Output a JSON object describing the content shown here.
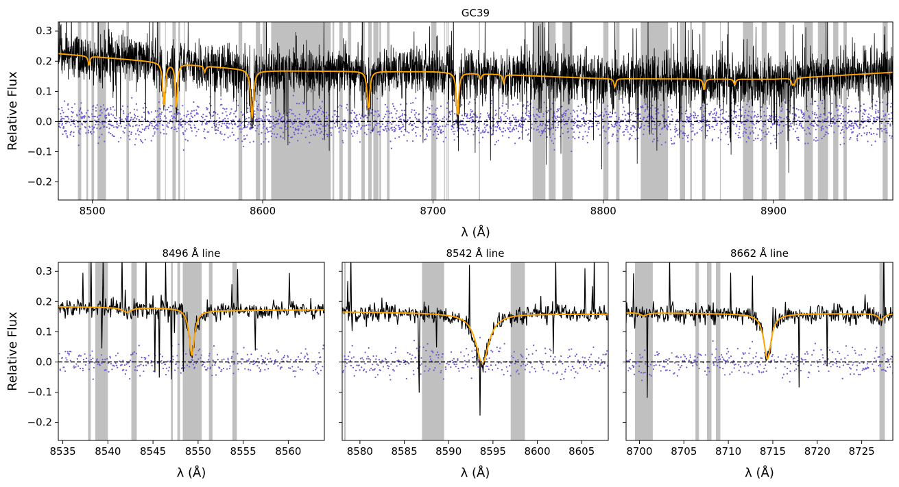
{
  "colors": {
    "spectrum": "#000000",
    "model": "#ffa500",
    "residuals": "#6a5acd",
    "mask": "#bdbdbd",
    "zero_line": "#000000"
  },
  "chart_data": [
    {
      "type": "line",
      "id": "main",
      "title": "GC39",
      "xlabel": "λ (Å)",
      "ylabel": "Relative Flux",
      "xlim": [
        8480,
        8970
      ],
      "ylim": [
        -0.26,
        0.33
      ],
      "xticks": [
        8500,
        8600,
        8700,
        8800,
        8900
      ],
      "yticks": [
        -0.2,
        -0.1,
        0.0,
        0.1,
        0.2,
        0.3
      ],
      "xticklabels": [
        "8500",
        "8600",
        "8700",
        "8800",
        "8900"
      ],
      "yticklabels": [
        "−0.2",
        "−0.1",
        "0.0",
        "0.1",
        "0.2",
        "0.3"
      ],
      "series": [
        {
          "name": "observed spectrum",
          "style": "black line",
          "level": 0.17,
          "noise": 0.09
        },
        {
          "name": "model fit",
          "style": "orange line",
          "continuum": [
            [
              8480,
              0.225
            ],
            [
              8600,
              0.168
            ],
            [
              8700,
              0.165
            ],
            [
              8800,
              0.142
            ],
            [
              8900,
              0.14
            ],
            [
              8970,
              0.163
            ]
          ]
        },
        {
          "name": "residuals",
          "style": "purple dots",
          "level": 0.0,
          "noise": 0.065
        },
        {
          "name": "zero",
          "style": "dashed black",
          "value": 0.0
        }
      ],
      "absorption_lines": [
        {
          "center": 8498.0,
          "depth": 0.03,
          "width": 0.6
        },
        {
          "center": 8542.1,
          "depth": 0.14,
          "width": 0.9
        },
        {
          "center": 8549.3,
          "depth": 0.15,
          "width": 0.7
        },
        {
          "center": 8566.0,
          "depth": 0.02,
          "width": 0.6
        },
        {
          "center": 8593.8,
          "depth": 0.16,
          "width": 1.0
        },
        {
          "center": 8662.1,
          "depth": 0.13,
          "width": 0.9
        },
        {
          "center": 8714.4,
          "depth": 0.15,
          "width": 0.8
        },
        {
          "center": 8728.0,
          "depth": 0.02,
          "width": 0.6
        },
        {
          "center": 8741.5,
          "depth": 0.03,
          "width": 0.6
        },
        {
          "center": 8806.8,
          "depth": 0.03,
          "width": 0.6
        },
        {
          "center": 8859.2,
          "depth": 0.04,
          "width": 0.6
        },
        {
          "center": 8877.2,
          "depth": 0.02,
          "width": 0.6
        },
        {
          "center": 8911.0,
          "depth": 0.02,
          "width": 0.6
        },
        {
          "center": 8912.2,
          "depth": 0.02,
          "width": 0.6
        }
      ],
      "masked_regions": [
        [
          8491.5,
          8493.5
        ],
        [
          8496.5,
          8497.5
        ],
        [
          8499.5,
          8501
        ],
        [
          8503,
          8508
        ],
        [
          8520,
          8521.5
        ],
        [
          8537.8,
          8540
        ],
        [
          8542.7,
          8543
        ],
        [
          8547,
          8549
        ],
        [
          8550.5,
          8551.5
        ],
        [
          8553.8,
          8554.3
        ],
        [
          8585.8,
          8588
        ],
        [
          8596,
          8598.5
        ],
        [
          8600,
          8602
        ],
        [
          8605,
          8640
        ],
        [
          8641,
          8642
        ],
        [
          8645,
          8647
        ],
        [
          8650,
          8652
        ],
        [
          8658,
          8660
        ],
        [
          8662,
          8664
        ],
        [
          8665,
          8668
        ],
        [
          8668.5,
          8669.5
        ],
        [
          8673,
          8674.5
        ],
        [
          8699,
          8702
        ],
        [
          8706.5,
          8707
        ],
        [
          8707.7,
          8708
        ],
        [
          8708.6,
          8709.2
        ],
        [
          8727,
          8727.6
        ],
        [
          8758.5,
          8766
        ],
        [
          8768,
          8772
        ],
        [
          8776,
          8782
        ],
        [
          8800,
          8803
        ],
        [
          8807.5,
          8809.5
        ],
        [
          8822,
          8838
        ],
        [
          8845,
          8848
        ],
        [
          8851,
          8852
        ],
        [
          8858,
          8860
        ],
        [
          8868.5,
          8869
        ],
        [
          8882,
          8888
        ],
        [
          8893,
          8896
        ],
        [
          8903,
          8907
        ],
        [
          8918,
          8923
        ],
        [
          8926,
          8932
        ],
        [
          8935,
          8938
        ],
        [
          8941,
          8943
        ],
        [
          8964,
          8967
        ]
      ]
    },
    {
      "type": "line",
      "id": "zoom1",
      "title": "8496 Å line",
      "xlabel": "λ (Å)",
      "ylabel": "Relative Flux",
      "xlim": [
        8534.5,
        8564.0
      ],
      "ylim": [
        -0.26,
        0.33
      ],
      "xticks": [
        8535,
        8540,
        8545,
        8550,
        8555,
        8560
      ],
      "yticks": [
        -0.2,
        -0.1,
        0.0,
        0.1,
        0.2,
        0.3
      ],
      "xticklabels": [
        "8535",
        "8540",
        "8545",
        "8550",
        "8555",
        "8560"
      ],
      "yticklabels": [
        "−0.2",
        "−0.1",
        "0.0",
        "0.1",
        "0.2",
        "0.3"
      ],
      "series": [
        {
          "name": "observed spectrum",
          "style": "black line",
          "level": 0.17,
          "noise": 0.05
        },
        {
          "name": "model fit",
          "style": "orange line",
          "continuum": [
            [
              8534.5,
              0.183
            ],
            [
              8548,
              0.178
            ],
            [
              8550,
              0.17
            ],
            [
              8564,
              0.173
            ]
          ]
        },
        {
          "name": "residuals",
          "style": "purple dots",
          "level": 0.0,
          "noise": 0.05
        },
        {
          "name": "zero",
          "style": "dashed black",
          "value": 0.0
        }
      ],
      "absorption_lines": [
        {
          "center": 8542.1,
          "depth": 0.015,
          "width": 0.6
        },
        {
          "center": 8549.3,
          "depth": 0.15,
          "width": 0.35
        }
      ],
      "masked_regions": [
        [
          8537.8,
          8538.1
        ],
        [
          8538.6,
          8540.0
        ],
        [
          8542.6,
          8543.2
        ],
        [
          8547.0,
          8547.2
        ],
        [
          8547.7,
          8548.0
        ],
        [
          8548.3,
          8550.4
        ],
        [
          8551.2,
          8551.6
        ],
        [
          8553.8,
          8554.3
        ]
      ]
    },
    {
      "type": "line",
      "id": "zoom2",
      "title": "8542 Å line",
      "xlabel": "λ (Å)",
      "ylabel": "",
      "xlim": [
        8578.0,
        8608.0
      ],
      "ylim": [
        -0.26,
        0.33
      ],
      "xticks": [
        8580,
        8585,
        8590,
        8595,
        8600,
        8605
      ],
      "yticks": [
        -0.2,
        -0.1,
        0.0,
        0.1,
        0.2,
        0.3
      ],
      "xticklabels": [
        "8580",
        "8585",
        "8590",
        "8595",
        "8600",
        "8605"
      ],
      "yticklabels": [],
      "series": [
        {
          "name": "observed spectrum",
          "style": "black line",
          "level": 0.165,
          "noise": 0.05
        },
        {
          "name": "model fit",
          "style": "orange line",
          "continuum": [
            [
              8578,
              0.166
            ],
            [
              8590,
              0.162
            ],
            [
              8608,
              0.158
            ]
          ]
        },
        {
          "name": "residuals",
          "style": "purple dots",
          "level": 0.0,
          "noise": 0.05
        },
        {
          "name": "zero",
          "style": "dashed black",
          "value": 0.0
        }
      ],
      "absorption_lines": [
        {
          "center": 8593.8,
          "depth": 0.165,
          "width": 0.9
        }
      ],
      "masked_regions": [
        [
          8578.2,
          8578.4
        ],
        [
          8587.0,
          8589.5
        ],
        [
          8597.0,
          8598.6
        ]
      ]
    },
    {
      "type": "line",
      "id": "zoom3",
      "title": "8662 Å line",
      "xlabel": "λ (Å)",
      "ylabel": "",
      "xlim": [
        8698.5,
        8728.5
      ],
      "ylim": [
        -0.26,
        0.33
      ],
      "xticks": [
        8700,
        8705,
        8710,
        8715,
        8720,
        8725
      ],
      "yticks": [
        -0.2,
        -0.1,
        0.0,
        0.1,
        0.2,
        0.3
      ],
      "xticklabels": [
        "8700",
        "8705",
        "8710",
        "8715",
        "8720",
        "8725"
      ],
      "yticklabels": [],
      "series": [
        {
          "name": "observed spectrum",
          "style": "black line",
          "level": 0.16,
          "noise": 0.05
        },
        {
          "name": "model fit",
          "style": "orange line",
          "continuum": [
            [
              8698.5,
              0.163
            ],
            [
              8710,
              0.16
            ],
            [
              8728.5,
              0.16
            ]
          ]
        },
        {
          "name": "residuals",
          "style": "purple dots",
          "level": 0.0,
          "noise": 0.05
        },
        {
          "name": "zero",
          "style": "dashed black",
          "value": 0.0
        }
      ],
      "absorption_lines": [
        {
          "center": 8700.5,
          "depth": 0.01,
          "width": 0.4
        },
        {
          "center": 8714.4,
          "depth": 0.15,
          "width": 0.5
        },
        {
          "center": 8727.2,
          "depth": 0.02,
          "width": 0.4
        }
      ],
      "masked_regions": [
        [
          8699.5,
          8701.5
        ],
        [
          8706.3,
          8706.7
        ],
        [
          8707.6,
          8708.1
        ],
        [
          8708.6,
          8709.1
        ],
        [
          8727.0,
          8727.6
        ]
      ]
    }
  ]
}
